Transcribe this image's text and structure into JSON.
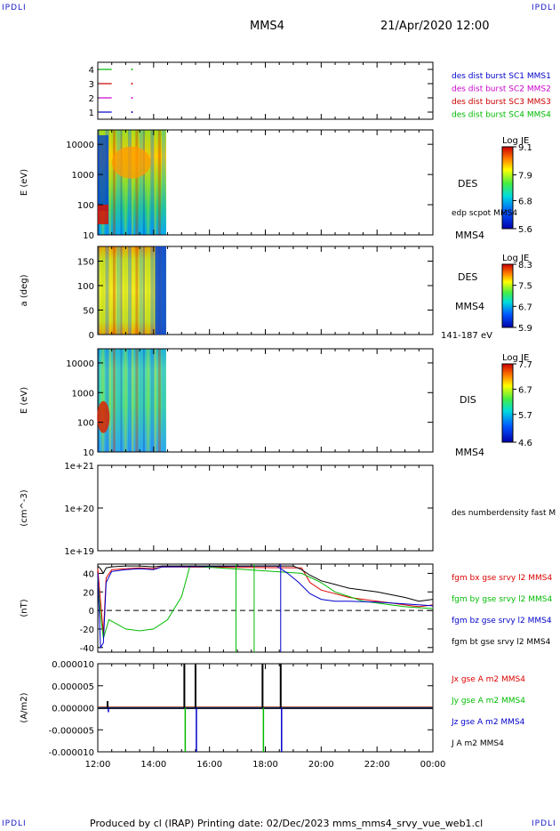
{
  "corner_labels": {
    "tl": "IPDLI",
    "tr": "IPDLI",
    "bl": "IPDLI",
    "br": "IPDLI"
  },
  "header": {
    "spacecraft": "MMS4",
    "datetime": "21/Apr/2020 12:00"
  },
  "footer": {
    "text": "Produced by cl (IRAP)   Printing date: 02/Dec/2023   mms_mms4_srvy_vue_web1.cl"
  },
  "chart_data": [
    {
      "type": "line",
      "panel": "availability",
      "yticks": [
        "1",
        "2",
        "3",
        "4"
      ],
      "ylim": [
        0.5,
        4.5
      ],
      "series": [
        {
          "name": "des dist burst SC1 MMS1",
          "color": "#0000cc",
          "y": 1
        },
        {
          "name": "des dist burst SC2 MMS2",
          "color": "#cc00cc",
          "y": 2
        },
        {
          "name": "des dist burst SC3 MMS3",
          "color": "#cc0000",
          "y": 3
        },
        {
          "name": "des dist burst SC4 MMS4",
          "color": "#00bb00",
          "y": 4
        }
      ]
    },
    {
      "type": "heatmap",
      "panel": "des-energy",
      "ylabel": "E (eV)",
      "yscale": "log",
      "yticks": [
        "10",
        "100",
        "1000",
        "10000"
      ],
      "ylim": [
        10,
        30000
      ],
      "xrange_hours": [
        12.0,
        14.45
      ],
      "colorbar": {
        "title": "Log JE",
        "ticks": [
          "9.1",
          "7.9",
          "6.8",
          "5.6"
        ],
        "min": 5.6,
        "max": 9.1
      },
      "labels": [
        "DES",
        "edp scpot MMS4",
        "MMS4"
      ]
    },
    {
      "type": "heatmap",
      "panel": "des-pitch",
      "ylabel": "a (deg)",
      "yticks": [
        "0",
        "50",
        "100",
        "150"
      ],
      "ylim": [
        0,
        180
      ],
      "xrange_hours": [
        12.0,
        14.45
      ],
      "colorbar": {
        "title": "Log JE",
        "ticks": [
          "8.3",
          "7.5",
          "6.7",
          "5.9"
        ],
        "min": 5.9,
        "max": 8.3
      },
      "labels": [
        "DES",
        "MMS4",
        "141-187 eV"
      ]
    },
    {
      "type": "heatmap",
      "panel": "dis-energy",
      "ylabel": "E (eV)",
      "yscale": "log",
      "yticks": [
        "10",
        "100",
        "1000",
        "10000"
      ],
      "ylim": [
        10,
        30000
      ],
      "xrange_hours": [
        12.0,
        14.45
      ],
      "colorbar": {
        "title": "Log JE",
        "ticks": [
          "7.7",
          "6.7",
          "5.7",
          "4.6"
        ],
        "min": 4.6,
        "max": 7.7
      },
      "labels": [
        "DIS",
        "MMS4"
      ]
    },
    {
      "type": "line",
      "panel": "density",
      "ylabel": "(cm^-3)",
      "yscale": "log",
      "yticks": [
        "1e+19",
        "1e+20",
        "1e+21"
      ],
      "ylim": [
        1e+19,
        1e+21
      ],
      "series": [
        {
          "name": "des numberdensity fast M",
          "x": [],
          "y": []
        }
      ]
    },
    {
      "type": "line",
      "panel": "fgm",
      "ylabel": "(nT)",
      "yticks": [
        "-40",
        "-20",
        "0",
        "20",
        "40"
      ],
      "ylim": [
        -45,
        50
      ],
      "series": [
        {
          "name": "fgm bx gse srvy l2 MMS4",
          "color": "#dd0000",
          "x": [
            12.0,
            12.1,
            12.2,
            12.3,
            12.5,
            13.0,
            13.5,
            14.0,
            14.3,
            19.3,
            19.6,
            20.0,
            20.5,
            21.0,
            21.5,
            22.0,
            22.5,
            23.0,
            23.5,
            24.0
          ],
          "y": [
            45,
            10,
            -25,
            35,
            44,
            45,
            46,
            45,
            47,
            46,
            30,
            22,
            18,
            14,
            12,
            10,
            8,
            6,
            4,
            6
          ]
        },
        {
          "name": "fgm by gse srvy l2 MMS4",
          "color": "#00bb00",
          "x": [
            12.0,
            12.1,
            12.2,
            12.4,
            12.7,
            13.0,
            13.5,
            14.0,
            14.5,
            15.0,
            15.3,
            19.3,
            20.0,
            20.5,
            21.0,
            21.5,
            22.0,
            22.5,
            23.0,
            23.5,
            24.0
          ],
          "y": [
            35,
            -5,
            -30,
            -10,
            -15,
            -20,
            -22,
            -20,
            -10,
            15,
            48,
            40,
            30,
            20,
            15,
            10,
            8,
            6,
            4,
            3,
            2
          ]
        },
        {
          "name": "fgm bz gse srvy l2 MMS4",
          "color": "#0000cc",
          "x": [
            12.0,
            12.1,
            12.2,
            12.3,
            12.5,
            13.0,
            13.5,
            14.0,
            14.3,
            18.4,
            18.8,
            19.2,
            19.6,
            20.0,
            20.5,
            21.0,
            22.0,
            23.0,
            24.0
          ],
          "y": [
            40,
            -40,
            -35,
            30,
            42,
            44,
            45,
            44,
            47,
            48,
            40,
            30,
            18,
            12,
            10,
            10,
            9,
            7,
            5
          ]
        },
        {
          "name": "fgm bt gse srvy l2 MMS4",
          "color": "#000000",
          "x": [
            12.0,
            12.1,
            12.2,
            12.3,
            12.5,
            13.0,
            13.5,
            14.0,
            14.3,
            19.0,
            19.3,
            19.6,
            20.0,
            20.5,
            21.0,
            22.0,
            23.0,
            23.5,
            24.0
          ],
          "y": [
            48,
            45,
            40,
            46,
            47,
            48,
            48,
            47,
            48,
            48,
            44,
            38,
            32,
            28,
            24,
            20,
            14,
            10,
            12
          ]
        }
      ]
    },
    {
      "type": "line",
      "panel": "current",
      "ylabel": "(A/m2)",
      "yticks": [
        "-0.000010",
        "-0.000005",
        "0.000000",
        "0.000005",
        "0.000010"
      ],
      "ylim": [
        -1e-05,
        1e-05
      ],
      "xlabel_ticks": [
        "12:00",
        "14:00",
        "16:00",
        "18:00",
        "20:00",
        "22:00",
        "00:00"
      ],
      "series": [
        {
          "name": "Jx gse A m2 MMS4",
          "color": "#dd0000"
        },
        {
          "name": "Jy gse A m2 MMS4",
          "color": "#00bb00"
        },
        {
          "name": "Jz gse A m2 MMS4",
          "color": "#0000cc"
        },
        {
          "name": "J A m2 MMS4",
          "color": "#000000"
        }
      ],
      "spikes_hours": [
        12.35,
        15.1,
        15.5,
        17.9,
        18.55
      ]
    }
  ]
}
